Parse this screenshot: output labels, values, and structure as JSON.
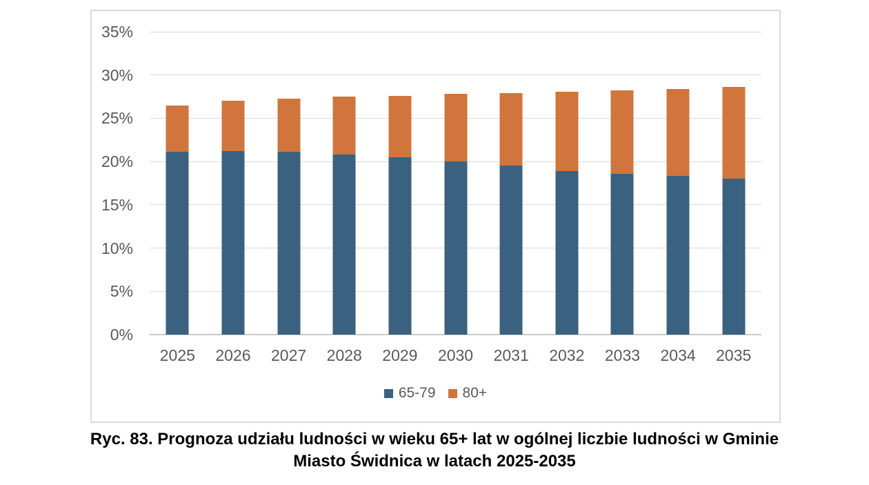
{
  "figure": {
    "caption_line1": "Ryc. 83. Prognoza udziału ludności w wieku 65+ lat w ogólnej liczbie ludności w Gminie",
    "caption_line2": "Miasto Świdnica w latach 2025-2035"
  },
  "chart_data": {
    "type": "bar",
    "stacked": true,
    "title": "",
    "xlabel": "",
    "ylabel": "",
    "categories": [
      "2025",
      "2026",
      "2027",
      "2028",
      "2029",
      "2030",
      "2031",
      "2032",
      "2033",
      "2034",
      "2035"
    ],
    "series": [
      {
        "name": "65-79",
        "color": "#3A6180",
        "values": [
          21.1,
          21.2,
          21.1,
          20.8,
          20.5,
          20.0,
          19.5,
          18.9,
          18.6,
          18.3,
          18.0
        ]
      },
      {
        "name": "80+",
        "color": "#D0753C",
        "values": [
          5.4,
          5.8,
          6.2,
          6.7,
          7.1,
          7.8,
          8.4,
          9.2,
          9.6,
          10.1,
          10.6
        ]
      }
    ],
    "totals": [
      26.5,
      27.0,
      27.3,
      27.5,
      27.6,
      27.8,
      27.9,
      28.1,
      28.2,
      28.4,
      28.6
    ],
    "ylim": [
      0,
      35
    ],
    "yticks": [
      "0%",
      "5%",
      "10%",
      "15%",
      "20%",
      "25%",
      "30%",
      "35%"
    ],
    "grid": true,
    "legend_position": "bottom",
    "colors": {
      "axis_text": "#595959",
      "gridline": "#D9D9D9",
      "axis_line": "#C9C9C9",
      "frame_border": "#D9D9D9"
    }
  }
}
